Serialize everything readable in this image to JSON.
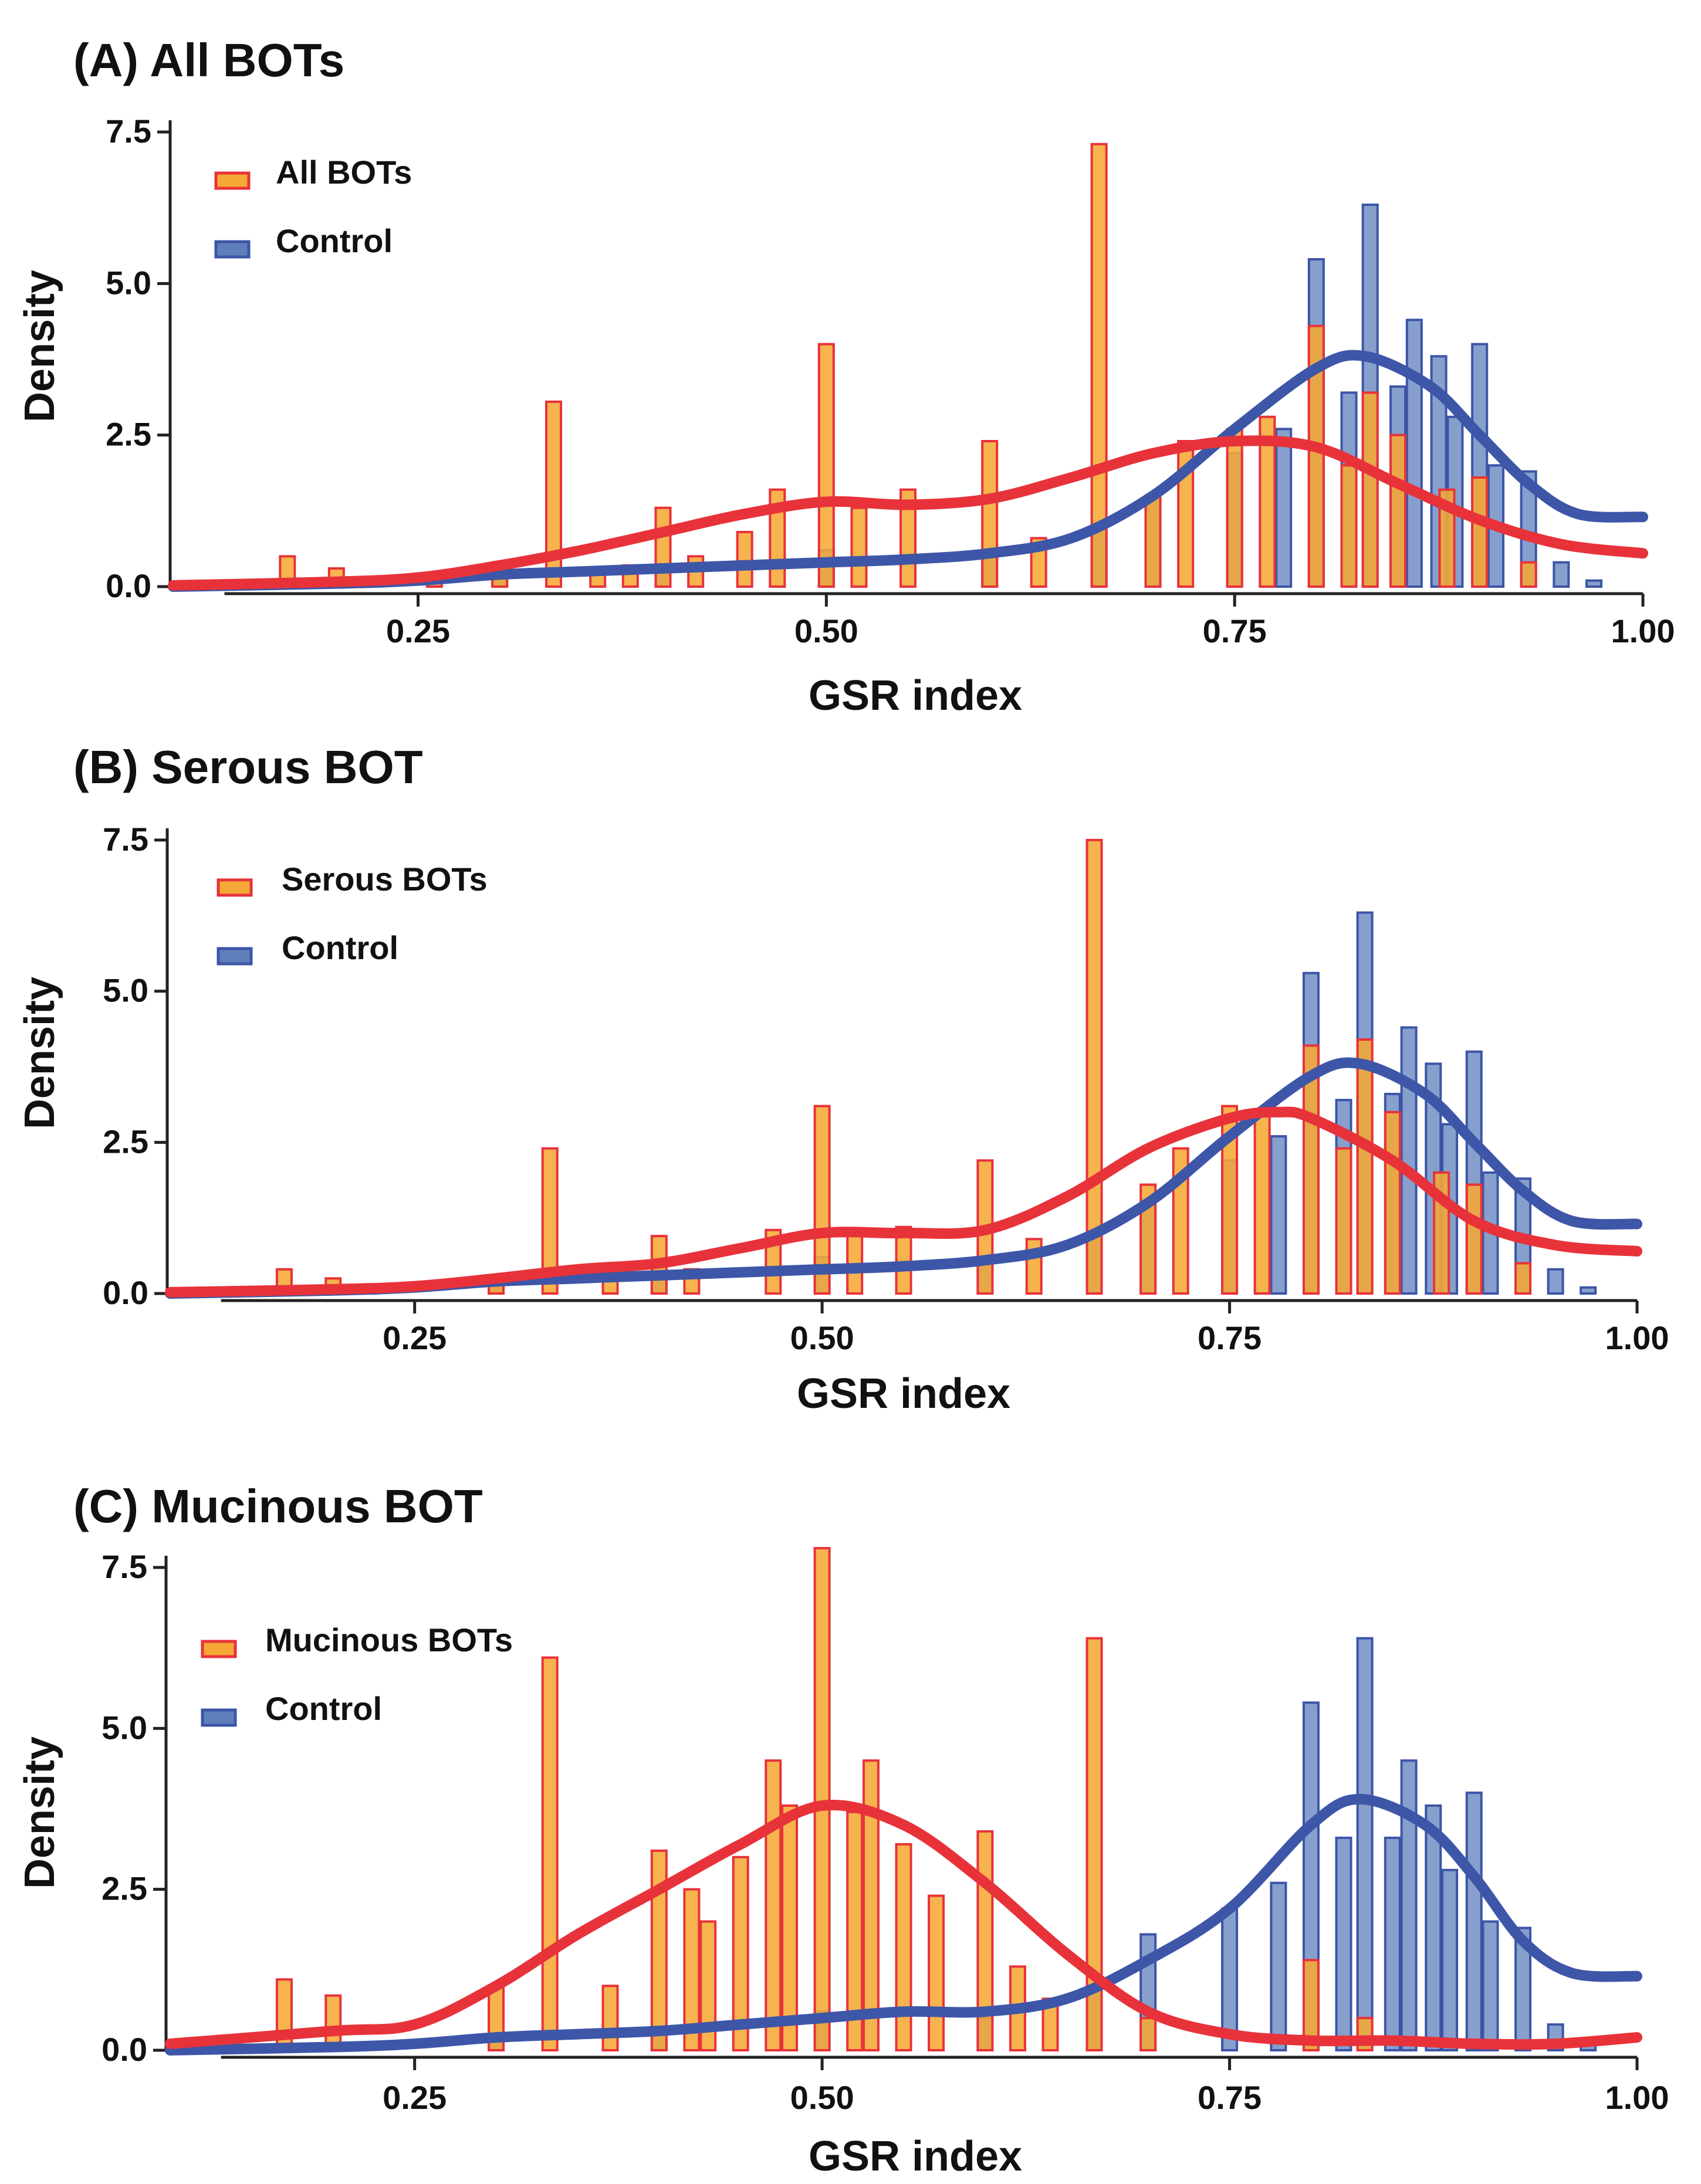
{
  "figure": {
    "x_ticks": [
      0.25,
      0.5,
      0.75,
      1.0
    ]
  },
  "colors": {
    "case_fill": "#f5a835",
    "case_edge": "#e8323a",
    "control_fill": "#5f7fbb",
    "control_edge": "#3c55a8",
    "case_curve": "#e8323a",
    "control_curve": "#3d56a8"
  },
  "chart_data": [
    {
      "type": "bar",
      "title": "(A) All BOTs",
      "xlabel": "GSR index",
      "ylabel": "Density",
      "xlim": [
        0.1,
        1.0
      ],
      "ylim": [
        0,
        7.5
      ],
      "x_ticks": [
        "0.25",
        "0.50",
        "0.75",
        "1.00"
      ],
      "y_ticks": [
        "0.0",
        "2.5",
        "5.0",
        "7.5"
      ],
      "legend": {
        "position": "top-left",
        "case": "All BOTs",
        "control": "Control"
      },
      "series": [
        {
          "name": "All BOTs",
          "kind": "histogram",
          "bars": [
            [
              0.17,
              0.5
            ],
            [
              0.2,
              0.3
            ],
            [
              0.26,
              0.15
            ],
            [
              0.3,
              0.4
            ],
            [
              0.333,
              3.05
            ],
            [
              0.36,
              0.3
            ],
            [
              0.38,
              0.35
            ],
            [
              0.4,
              1.3
            ],
            [
              0.42,
              0.5
            ],
            [
              0.45,
              0.9
            ],
            [
              0.47,
              1.6
            ],
            [
              0.5,
              4.0
            ],
            [
              0.52,
              1.3
            ],
            [
              0.55,
              1.6
            ],
            [
              0.6,
              2.4
            ],
            [
              0.63,
              0.8
            ],
            [
              0.667,
              7.3
            ],
            [
              0.7,
              1.5
            ],
            [
              0.72,
              2.4
            ],
            [
              0.75,
              2.6
            ],
            [
              0.77,
              2.8
            ],
            [
              0.8,
              4.3
            ],
            [
              0.82,
              2.0
            ],
            [
              0.833,
              3.2
            ],
            [
              0.85,
              2.5
            ],
            [
              0.88,
              1.6
            ],
            [
              0.9,
              1.8
            ],
            [
              0.93,
              0.4
            ]
          ]
        },
        {
          "name": "Control",
          "kind": "histogram",
          "bars": [
            [
              0.3,
              0.2
            ],
            [
              0.4,
              0.3
            ],
            [
              0.5,
              0.6
            ],
            [
              0.6,
              0.5
            ],
            [
              0.667,
              1.0
            ],
            [
              0.7,
              1.5
            ],
            [
              0.75,
              2.2
            ],
            [
              0.78,
              2.6
            ],
            [
              0.8,
              5.4
            ],
            [
              0.82,
              3.2
            ],
            [
              0.833,
              6.3
            ],
            [
              0.85,
              3.3
            ],
            [
              0.86,
              4.4
            ],
            [
              0.875,
              3.8
            ],
            [
              0.885,
              2.8
            ],
            [
              0.9,
              4.0
            ],
            [
              0.91,
              2.0
            ],
            [
              0.93,
              1.9
            ],
            [
              0.95,
              0.4
            ],
            [
              0.97,
              0.1
            ]
          ]
        },
        {
          "name": "All BOTs density",
          "kind": "line",
          "x": [
            0.1,
            0.2,
            0.25,
            0.3,
            0.35,
            0.4,
            0.45,
            0.5,
            0.55,
            0.6,
            0.65,
            0.7,
            0.75,
            0.8,
            0.85,
            0.9,
            0.95,
            1.0
          ],
          "y": [
            0.02,
            0.08,
            0.15,
            0.35,
            0.6,
            0.9,
            1.2,
            1.4,
            1.35,
            1.45,
            1.8,
            2.2,
            2.4,
            2.3,
            1.7,
            1.1,
            0.7,
            0.55
          ]
        },
        {
          "name": "Control density",
          "kind": "line",
          "x": [
            0.1,
            0.2,
            0.25,
            0.3,
            0.35,
            0.4,
            0.45,
            0.5,
            0.55,
            0.6,
            0.65,
            0.7,
            0.75,
            0.8,
            0.83,
            0.87,
            0.9,
            0.93,
            0.96,
            1.0
          ],
          "y": [
            0.0,
            0.05,
            0.1,
            0.2,
            0.25,
            0.3,
            0.35,
            0.4,
            0.45,
            0.55,
            0.8,
            1.5,
            2.6,
            3.6,
            3.8,
            3.3,
            2.5,
            1.7,
            1.2,
            1.15
          ]
        }
      ]
    },
    {
      "type": "bar",
      "title": "(B) Serous BOT",
      "xlabel": "GSR index",
      "ylabel": "Density",
      "xlim": [
        0.1,
        1.0
      ],
      "ylim": [
        0,
        7.5
      ],
      "x_ticks": [
        "0.25",
        "0.50",
        "0.75",
        "1.00"
      ],
      "y_ticks": [
        "0.0",
        "2.5",
        "5.0",
        "7.5"
      ],
      "legend": {
        "position": "top-left",
        "case": "Serous BOTs",
        "control": "Control"
      },
      "series": [
        {
          "name": "Serous BOTs",
          "kind": "histogram",
          "bars": [
            [
              0.17,
              0.4
            ],
            [
              0.2,
              0.25
            ],
            [
              0.3,
              0.3
            ],
            [
              0.333,
              2.4
            ],
            [
              0.37,
              0.25
            ],
            [
              0.4,
              0.95
            ],
            [
              0.42,
              0.4
            ],
            [
              0.47,
              1.05
            ],
            [
              0.5,
              3.1
            ],
            [
              0.52,
              1.0
            ],
            [
              0.55,
              1.1
            ],
            [
              0.6,
              2.2
            ],
            [
              0.63,
              0.9
            ],
            [
              0.667,
              7.5
            ],
            [
              0.7,
              1.8
            ],
            [
              0.72,
              2.4
            ],
            [
              0.75,
              3.1
            ],
            [
              0.77,
              3.0
            ],
            [
              0.8,
              4.1
            ],
            [
              0.82,
              2.4
            ],
            [
              0.833,
              4.2
            ],
            [
              0.85,
              3.0
            ],
            [
              0.88,
              2.0
            ],
            [
              0.9,
              1.8
            ],
            [
              0.93,
              0.5
            ]
          ]
        },
        {
          "name": "Control",
          "kind": "histogram",
          "bars": [
            [
              0.3,
              0.2
            ],
            [
              0.4,
              0.3
            ],
            [
              0.5,
              0.6
            ],
            [
              0.6,
              0.5
            ],
            [
              0.667,
              1.0
            ],
            [
              0.7,
              1.5
            ],
            [
              0.75,
              2.2
            ],
            [
              0.78,
              2.6
            ],
            [
              0.8,
              5.3
            ],
            [
              0.82,
              3.2
            ],
            [
              0.833,
              6.3
            ],
            [
              0.85,
              3.3
            ],
            [
              0.86,
              4.4
            ],
            [
              0.875,
              3.8
            ],
            [
              0.885,
              2.8
            ],
            [
              0.9,
              4.0
            ],
            [
              0.91,
              2.0
            ],
            [
              0.93,
              1.9
            ],
            [
              0.95,
              0.4
            ],
            [
              0.97,
              0.1
            ]
          ]
        },
        {
          "name": "Serous BOTs density",
          "kind": "line",
          "x": [
            0.1,
            0.2,
            0.25,
            0.3,
            0.35,
            0.4,
            0.45,
            0.5,
            0.55,
            0.6,
            0.65,
            0.7,
            0.75,
            0.78,
            0.8,
            0.85,
            0.9,
            0.95,
            1.0
          ],
          "y": [
            0.02,
            0.07,
            0.12,
            0.25,
            0.4,
            0.5,
            0.75,
            1.0,
            1.0,
            1.05,
            1.6,
            2.4,
            2.9,
            3.0,
            2.9,
            2.2,
            1.2,
            0.8,
            0.7
          ]
        },
        {
          "name": "Control density",
          "kind": "line",
          "x": [
            0.1,
            0.2,
            0.25,
            0.3,
            0.35,
            0.4,
            0.45,
            0.5,
            0.55,
            0.6,
            0.65,
            0.7,
            0.75,
            0.8,
            0.83,
            0.87,
            0.9,
            0.93,
            0.96,
            1.0
          ],
          "y": [
            0.0,
            0.05,
            0.1,
            0.2,
            0.25,
            0.3,
            0.35,
            0.4,
            0.45,
            0.55,
            0.8,
            1.5,
            2.6,
            3.6,
            3.8,
            3.3,
            2.5,
            1.7,
            1.2,
            1.15
          ]
        }
      ]
    },
    {
      "type": "bar",
      "title": "(C) Mucinous BOT",
      "xlabel": "GSR index",
      "ylabel": "Density",
      "xlim": [
        0.1,
        1.0
      ],
      "ylim": [
        0,
        7.5
      ],
      "x_ticks": [
        "0.25",
        "0.50",
        "0.75",
        "1.00"
      ],
      "y_ticks": [
        "0.0",
        "2.5",
        "5.0",
        "7.5"
      ],
      "legend": {
        "position": "top-left",
        "case": "Mucinous BOTs",
        "control": "Control"
      },
      "series": [
        {
          "name": "Mucinous BOTs",
          "kind": "histogram",
          "bars": [
            [
              0.17,
              1.1
            ],
            [
              0.2,
              0.85
            ],
            [
              0.3,
              1.0
            ],
            [
              0.333,
              6.1
            ],
            [
              0.37,
              1.0
            ],
            [
              0.4,
              3.1
            ],
            [
              0.42,
              2.5
            ],
            [
              0.43,
              2.0
            ],
            [
              0.45,
              3.0
            ],
            [
              0.47,
              4.5
            ],
            [
              0.48,
              3.8
            ],
            [
              0.5,
              8.2
            ],
            [
              0.52,
              3.7
            ],
            [
              0.53,
              4.5
            ],
            [
              0.55,
              3.2
            ],
            [
              0.57,
              2.4
            ],
            [
              0.6,
              3.4
            ],
            [
              0.62,
              1.3
            ],
            [
              0.64,
              0.8
            ],
            [
              0.667,
              6.4
            ],
            [
              0.7,
              0.5
            ],
            [
              0.8,
              1.4
            ],
            [
              0.833,
              0.5
            ]
          ]
        },
        {
          "name": "Control",
          "kind": "histogram",
          "bars": [
            [
              0.3,
              0.2
            ],
            [
              0.4,
              0.3
            ],
            [
              0.5,
              0.6
            ],
            [
              0.6,
              0.5
            ],
            [
              0.667,
              1.0
            ],
            [
              0.7,
              1.8
            ],
            [
              0.75,
              2.2
            ],
            [
              0.78,
              2.6
            ],
            [
              0.8,
              5.4
            ],
            [
              0.82,
              3.3
            ],
            [
              0.833,
              6.4
            ],
            [
              0.85,
              3.3
            ],
            [
              0.86,
              4.5
            ],
            [
              0.875,
              3.8
            ],
            [
              0.885,
              2.8
            ],
            [
              0.9,
              4.0
            ],
            [
              0.91,
              2.0
            ],
            [
              0.93,
              1.9
            ],
            [
              0.95,
              0.4
            ],
            [
              0.97,
              0.1
            ]
          ]
        },
        {
          "name": "Mucinous BOTs density",
          "kind": "line",
          "x": [
            0.1,
            0.2,
            0.25,
            0.3,
            0.35,
            0.4,
            0.45,
            0.5,
            0.55,
            0.6,
            0.65,
            0.7,
            0.75,
            0.8,
            0.85,
            0.9,
            0.95,
            1.0
          ],
          "y": [
            0.1,
            0.3,
            0.4,
            1.0,
            1.8,
            2.5,
            3.2,
            3.8,
            3.5,
            2.6,
            1.5,
            0.6,
            0.25,
            0.15,
            0.15,
            0.1,
            0.1,
            0.2
          ]
        },
        {
          "name": "Control density",
          "kind": "line",
          "x": [
            0.1,
            0.2,
            0.25,
            0.3,
            0.35,
            0.4,
            0.45,
            0.5,
            0.55,
            0.6,
            0.65,
            0.7,
            0.75,
            0.8,
            0.83,
            0.87,
            0.9,
            0.93,
            0.96,
            1.0
          ],
          "y": [
            0.0,
            0.05,
            0.1,
            0.2,
            0.25,
            0.3,
            0.4,
            0.5,
            0.6,
            0.6,
            0.8,
            1.4,
            2.2,
            3.5,
            3.9,
            3.5,
            2.7,
            1.7,
            1.2,
            1.15
          ]
        }
      ]
    }
  ]
}
